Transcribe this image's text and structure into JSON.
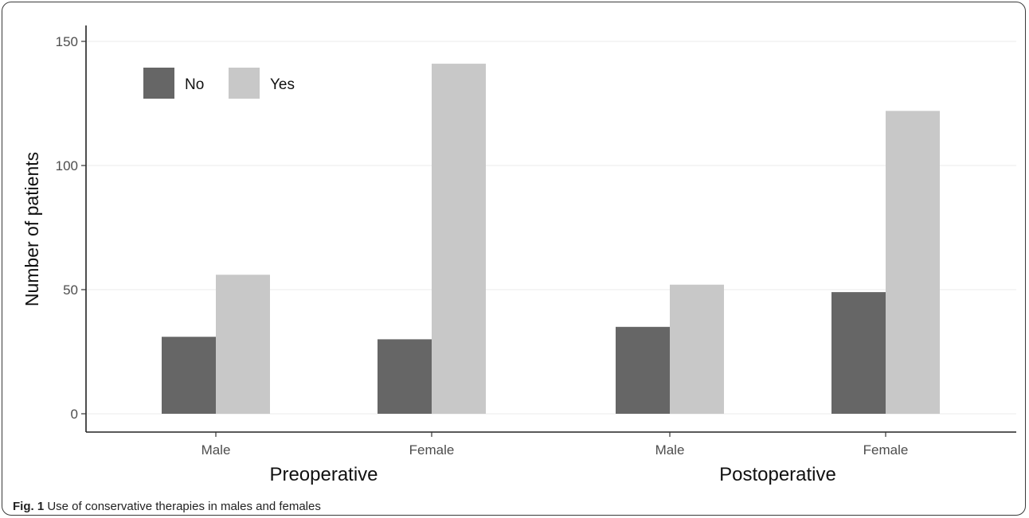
{
  "chart_data": {
    "type": "bar",
    "ylabel": "Number of patients",
    "ylim": [
      0,
      155
    ],
    "yticks": [
      0,
      50,
      100,
      150
    ],
    "grid": true,
    "legend_position": "top-left",
    "groups": [
      {
        "label": "Preoperative",
        "categories": [
          "Male",
          "Female"
        ]
      },
      {
        "label": "Postoperative",
        "categories": [
          "Male",
          "Female"
        ]
      }
    ],
    "series": [
      {
        "name": "No",
        "color": "#666666",
        "values": [
          31,
          30,
          35,
          49
        ]
      },
      {
        "name": "Yes",
        "color": "#c8c8c8",
        "values": [
          56,
          141,
          52,
          122
        ]
      }
    ]
  },
  "caption": {
    "label": "Fig. 1",
    "text": "Use of conservative therapies in males and females"
  }
}
